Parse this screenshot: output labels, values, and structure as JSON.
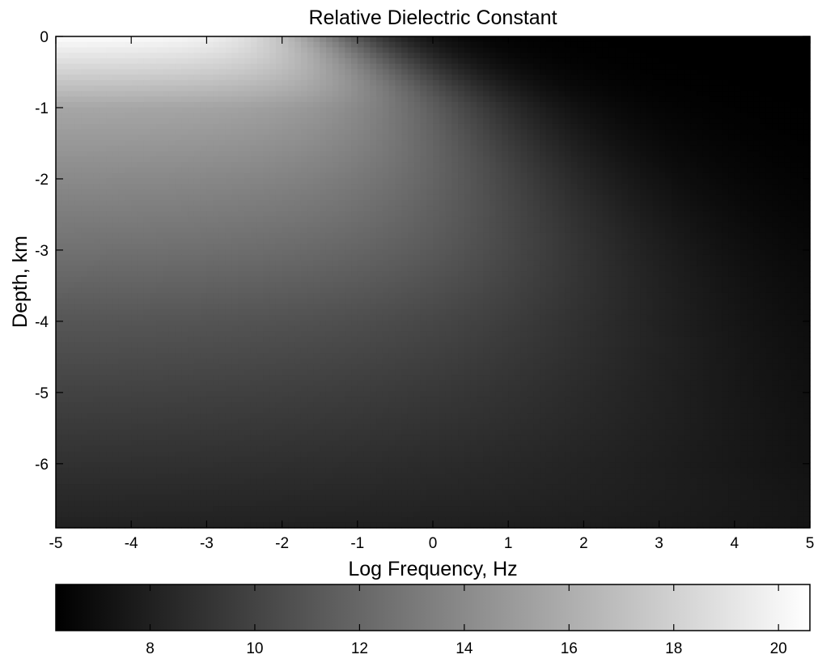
{
  "chart_data": {
    "type": "heatmap",
    "title": "Relative Dielectric Constant",
    "xlabel": "Log Frequency, Hz",
    "ylabel": "Depth, km",
    "xlim": [
      -5,
      5
    ],
    "ylim": [
      -6.9,
      0
    ],
    "x_ticks": [
      -5,
      -4,
      -3,
      -2,
      -1,
      0,
      1,
      2,
      3,
      4,
      5
    ],
    "y_ticks": [
      0,
      -1,
      -2,
      -3,
      -4,
      -5,
      -6
    ],
    "colormap": "gray",
    "colormap_low": "#000000",
    "colormap_high": "#ffffff",
    "color_range": [
      6.2,
      20.6
    ],
    "colorbar": {
      "orientation": "horizontal",
      "placement": "bottom",
      "ticks": [
        8,
        10,
        12,
        14,
        16,
        18,
        20
      ]
    },
    "grid": false,
    "low_frequency_value_by_depth": {
      "depth_km": [
        0,
        -1,
        -2,
        -3,
        -4,
        -5,
        -6,
        -6.9
      ],
      "value": [
        20.5,
        15.6,
        14.0,
        12.6,
        11.1,
        10.0,
        9.0,
        8.1
      ]
    },
    "high_frequency_value": 6.2,
    "transition_log_frequency_by_depth": {
      "depth_km": [
        0,
        -1,
        -2,
        -3,
        -4,
        -5,
        -6,
        -6.9
      ],
      "log_frequency": [
        -1.4,
        0.2,
        1.0,
        1.7,
        2.3,
        2.9,
        3.8,
        6.0
      ]
    }
  }
}
